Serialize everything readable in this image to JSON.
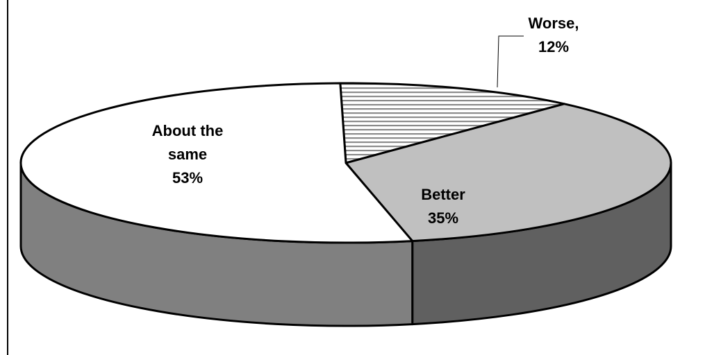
{
  "chart_data": {
    "type": "pie",
    "style": "3d",
    "title": "",
    "slices": [
      {
        "label_lines": [
          "Worse,",
          "12%"
        ],
        "category": "Worse",
        "value": 12,
        "fill": "#ffffff",
        "pattern": "horizontal-stripes",
        "side_color": "#707070"
      },
      {
        "label_lines": [
          "Better",
          "35%"
        ],
        "category": "Better",
        "value": 35,
        "fill": "#c0c0c0",
        "pattern": "solid",
        "side_color": "#606060"
      },
      {
        "label_lines": [
          "About the",
          "same",
          "53%"
        ],
        "category": "About the same",
        "value": 53,
        "fill": "#ffffff",
        "pattern": "solid",
        "side_color": "#808080"
      }
    ]
  }
}
